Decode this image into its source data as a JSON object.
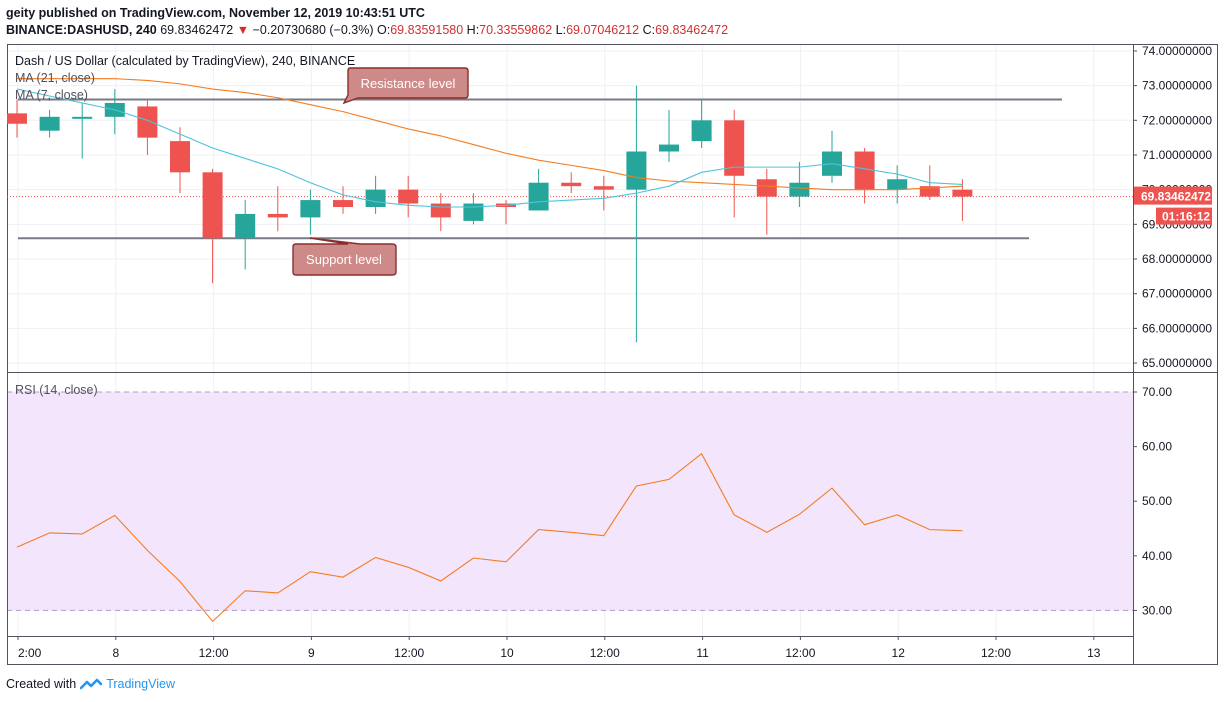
{
  "header": {
    "line1": "geity published on TradingView.com, November 12, 2019 10:43:51 UTC",
    "symbol": "BINANCE:DASHUSD, 240",
    "last": "69.83462472",
    "change": "−0.20730680 (−0.3%)",
    "o_label": "O:",
    "o_value": "69.83591580",
    "h_label": "H:",
    "h_value": "70.33559862",
    "l_label": "L:",
    "l_value": "69.07046212",
    "c_label": "C:",
    "c_value": "69.83462472"
  },
  "colors": {
    "up": "#26a69a",
    "down": "#ef5350",
    "ma21": "#f57c20",
    "ma7": "#4fc3d9",
    "rsi": "#f57c20",
    "rsi_band": "#f3e5fb",
    "level_line": "#787b86",
    "callout_fill": "#cd8a88",
    "callout_border": "#8b2e2e",
    "price_label": "#ef5350"
  },
  "chart_data": [
    {
      "type": "candlestick",
      "title": "Dash / US Dollar (calculated by TradingView), 240, BINANCE",
      "legend": [
        "MA (21, close)",
        "MA (7, close)"
      ],
      "ylim": [
        64.8,
        74.2
      ],
      "y_ticks": [
        "74.00000000",
        "73.00000000",
        "72.00000000",
        "71.00000000",
        "70.00000000",
        "69.00000000",
        "68.00000000",
        "67.00000000",
        "66.00000000",
        "65.00000000"
      ],
      "x_ticks": [
        "2:00",
        "8",
        "12:00",
        "9",
        "12:00",
        "10",
        "12:00",
        "11",
        "12:00",
        "12",
        "12:00",
        "13"
      ],
      "candles": [
        {
          "o": 72.2,
          "h": 72.6,
          "l": 71.5,
          "c": 71.9
        },
        {
          "o": 71.7,
          "h": 72.3,
          "l": 71.5,
          "c": 72.1
        },
        {
          "o": 72.1,
          "h": 72.5,
          "l": 70.9,
          "c": 72.1
        },
        {
          "o": 72.1,
          "h": 72.9,
          "l": 71.6,
          "c": 72.5
        },
        {
          "o": 72.4,
          "h": 72.6,
          "l": 71.0,
          "c": 71.5
        },
        {
          "o": 71.4,
          "h": 71.8,
          "l": 69.9,
          "c": 70.5
        },
        {
          "o": 70.5,
          "h": 70.6,
          "l": 67.3,
          "c": 68.6
        },
        {
          "o": 68.6,
          "h": 69.7,
          "l": 67.7,
          "c": 69.3
        },
        {
          "o": 69.3,
          "h": 70.1,
          "l": 68.8,
          "c": 69.2
        },
        {
          "o": 69.2,
          "h": 70.0,
          "l": 68.7,
          "c": 69.7
        },
        {
          "o": 69.7,
          "h": 70.1,
          "l": 69.3,
          "c": 69.5
        },
        {
          "o": 69.5,
          "h": 70.4,
          "l": 69.3,
          "c": 70.0
        },
        {
          "o": 70.0,
          "h": 70.4,
          "l": 69.2,
          "c": 69.6
        },
        {
          "o": 69.6,
          "h": 69.9,
          "l": 68.8,
          "c": 69.2
        },
        {
          "o": 69.1,
          "h": 69.9,
          "l": 69.0,
          "c": 69.6
        },
        {
          "o": 69.6,
          "h": 69.7,
          "l": 69.0,
          "c": 69.5
        },
        {
          "o": 69.4,
          "h": 70.6,
          "l": 69.4,
          "c": 70.2
        },
        {
          "o": 70.2,
          "h": 70.5,
          "l": 69.9,
          "c": 70.1
        },
        {
          "o": 70.1,
          "h": 70.4,
          "l": 69.4,
          "c": 70.0
        },
        {
          "o": 70.0,
          "h": 73.0,
          "l": 65.6,
          "c": 71.1
        },
        {
          "o": 71.1,
          "h": 72.3,
          "l": 70.8,
          "c": 71.3
        },
        {
          "o": 71.4,
          "h": 72.6,
          "l": 71.2,
          "c": 72.0
        },
        {
          "o": 72.0,
          "h": 72.3,
          "l": 69.2,
          "c": 70.4
        },
        {
          "o": 70.3,
          "h": 70.6,
          "l": 68.7,
          "c": 69.8
        },
        {
          "o": 69.8,
          "h": 70.8,
          "l": 69.5,
          "c": 70.2
        },
        {
          "o": 70.4,
          "h": 71.7,
          "l": 70.2,
          "c": 71.1
        },
        {
          "o": 71.1,
          "h": 71.2,
          "l": 69.6,
          "c": 70.0
        },
        {
          "o": 70.0,
          "h": 70.7,
          "l": 69.6,
          "c": 70.3
        },
        {
          "o": 70.1,
          "h": 70.7,
          "l": 69.7,
          "c": 69.8
        },
        {
          "o": 70.0,
          "h": 70.3,
          "l": 69.1,
          "c": 69.8
        }
      ],
      "ma21": [
        73.2,
        73.2,
        73.2,
        73.2,
        73.15,
        73.05,
        72.9,
        72.8,
        72.65,
        72.45,
        72.25,
        72.0,
        71.75,
        71.55,
        71.3,
        71.05,
        70.85,
        70.7,
        70.55,
        70.35,
        70.25,
        70.2,
        70.15,
        70.1,
        70.05,
        70.0,
        70.0,
        70.0,
        70.05,
        70.1
      ],
      "ma7": [
        72.9,
        72.7,
        72.5,
        72.3,
        72.0,
        71.6,
        71.2,
        70.9,
        70.6,
        70.2,
        69.85,
        69.65,
        69.55,
        69.5,
        69.5,
        69.55,
        69.65,
        69.7,
        69.75,
        69.9,
        70.1,
        70.5,
        70.65,
        70.65,
        70.65,
        70.75,
        70.6,
        70.45,
        70.2,
        70.15
      ],
      "current_price_label": "69.83462472",
      "countdown_label": "01:16:12",
      "resistance": {
        "value": 72.6,
        "label": "Resistance level"
      },
      "support": {
        "value": 68.6,
        "label": "Support level"
      }
    },
    {
      "type": "line",
      "title": "RSI (14, close)",
      "ylim": [
        25.5,
        73.3
      ],
      "y_ticks": [
        "70.00",
        "60.00",
        "50.00",
        "40.00",
        "30.00"
      ],
      "band": [
        30,
        70
      ],
      "values": [
        41.6,
        44.2,
        44.0,
        47.4,
        41.0,
        35.3,
        28.0,
        33.6,
        33.2,
        37.1,
        36.1,
        39.7,
        37.9,
        35.4,
        39.6,
        38.9,
        44.8,
        44.3,
        43.7,
        52.8,
        54.0,
        58.7,
        47.5,
        44.3,
        47.6,
        52.4,
        45.7,
        47.5,
        44.8,
        44.6
      ]
    }
  ],
  "footer": {
    "created_with": "Created with",
    "brand": "TradingView"
  }
}
